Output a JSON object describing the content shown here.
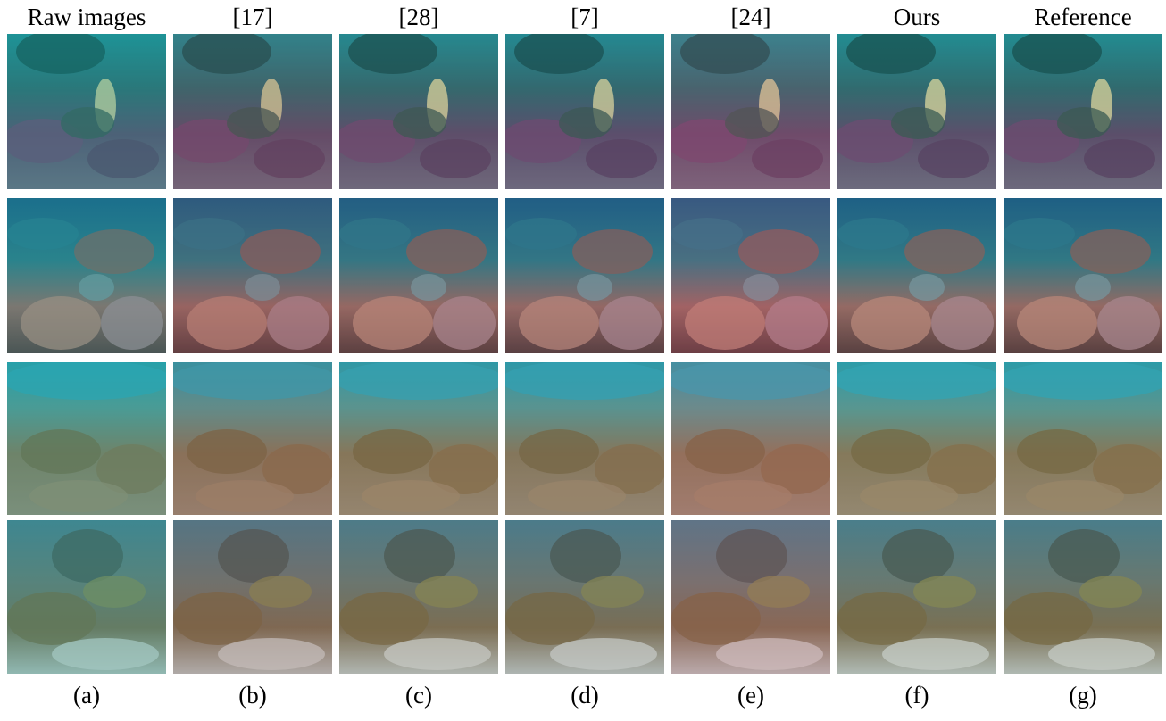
{
  "columns": [
    {
      "header": "Raw images",
      "label": "(a)"
    },
    {
      "header": "[17]",
      "label": "(b)"
    },
    {
      "header": "[28]",
      "label": "(c)"
    },
    {
      "header": "[7]",
      "label": "(d)"
    },
    {
      "header": "[24]",
      "label": "(e)"
    },
    {
      "header": "Ours",
      "label": "(f)"
    },
    {
      "header": "Reference",
      "label": "(g)"
    }
  ]
}
